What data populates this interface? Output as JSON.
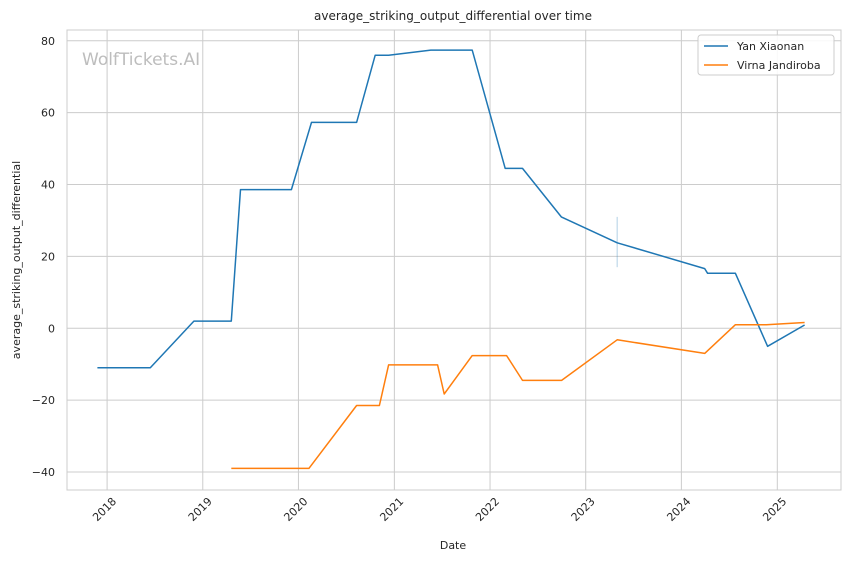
{
  "chart_data": {
    "type": "line",
    "title": "average_striking_output_differential over time",
    "xlabel": "Date",
    "ylabel": "average_striking_output_differential",
    "watermark": "WolfTickets.AI",
    "xlim": [
      "2017-08-01",
      "2025-09-01"
    ],
    "ylim": [
      -45,
      83
    ],
    "x_ticks": [
      "2018-01-01",
      "2019-01-01",
      "2020-01-01",
      "2021-01-01",
      "2022-01-01",
      "2023-01-01",
      "2024-01-01",
      "2025-01-01"
    ],
    "x_tick_labels": [
      "2018",
      "2019",
      "2020",
      "2021",
      "2022",
      "2023",
      "2024",
      "2025"
    ],
    "y_ticks": [
      -40,
      -20,
      0,
      20,
      40,
      60,
      80
    ],
    "y_tick_labels": [
      "−40",
      "−20",
      "0",
      "20",
      "40",
      "60",
      "80"
    ],
    "grid": true,
    "legend_position": "top-right",
    "series": [
      {
        "name": "Yan Xiaonan",
        "color": "#1f77b4",
        "points": [
          [
            "2017-11-25",
            -11.0
          ],
          [
            "2018-06-15",
            -11.0
          ],
          [
            "2018-11-28",
            2.0
          ],
          [
            "2019-04-20",
            2.0
          ],
          [
            "2019-05-25",
            38.6
          ],
          [
            "2019-12-05",
            38.6
          ],
          [
            "2020-02-20",
            57.3
          ],
          [
            "2020-08-10",
            57.3
          ],
          [
            "2020-10-20",
            76.0
          ],
          [
            "2020-12-10",
            76.0
          ],
          [
            "2021-05-20",
            77.4
          ],
          [
            "2021-10-25",
            77.4
          ],
          [
            "2022-02-28",
            44.5
          ],
          [
            "2022-05-05",
            44.5
          ],
          [
            "2022-09-30",
            31.0
          ],
          [
            "2023-05-01",
            23.8
          ],
          [
            "2024-03-30",
            16.6
          ],
          [
            "2024-04-10",
            15.3
          ],
          [
            "2024-07-25",
            15.3
          ],
          [
            "2024-11-25",
            -5.0
          ],
          [
            "2025-04-15",
            0.9
          ]
        ]
      },
      {
        "name": "Virna Jandiroba",
        "color": "#ff7f0e",
        "points": [
          [
            "2019-04-20",
            -39.0
          ],
          [
            "2020-02-10",
            -39.0
          ],
          [
            "2020-08-10",
            -21.5
          ],
          [
            "2020-11-05",
            -21.5
          ],
          [
            "2020-12-10",
            -10.2
          ],
          [
            "2021-06-15",
            -10.2
          ],
          [
            "2021-07-10",
            -18.3
          ],
          [
            "2021-10-25",
            -7.6
          ],
          [
            "2022-03-05",
            -7.6
          ],
          [
            "2022-05-05",
            -14.5
          ],
          [
            "2022-10-01",
            -14.5
          ],
          [
            "2023-05-01",
            -3.2
          ],
          [
            "2024-03-30",
            -7.0
          ],
          [
            "2024-07-25",
            1.0
          ],
          [
            "2024-11-20",
            1.0
          ],
          [
            "2025-04-15",
            1.6
          ]
        ]
      }
    ],
    "annotations": [
      {
        "type": "vertical-range",
        "x": "2023-05-01",
        "y_range": [
          17.0,
          31.0
        ],
        "color": "#1f77b4"
      }
    ]
  }
}
